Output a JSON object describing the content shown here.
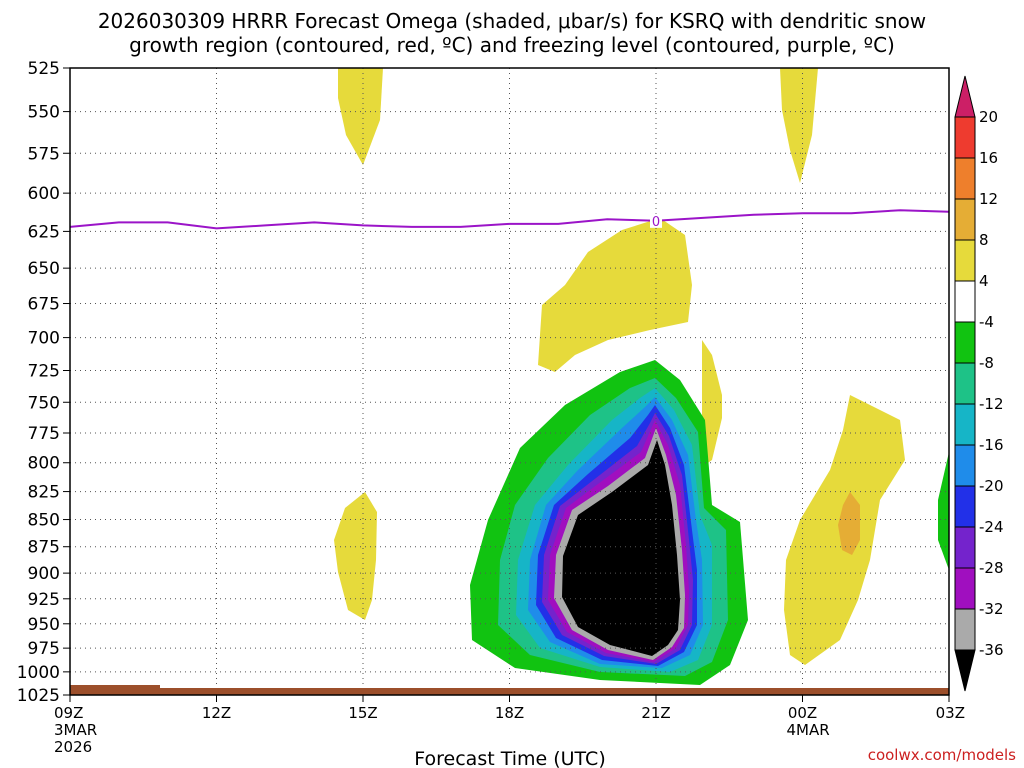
{
  "chart_data": {
    "type": "contour",
    "title_line1": "2026030309 HRRR Forecast Omega (shaded, μbar/s) for KSRQ with dendritic snow",
    "title_line2": "growth region (contoured, red, ºC) and freezing level (contoured, purple, ºC)",
    "xlabel": "Forecast Time (UTC)",
    "watermark": "coolwx.com/models",
    "x_hours": [
      0,
      3,
      6,
      9,
      12,
      15,
      18
    ],
    "x_ticks": [
      {
        "label": "09Z",
        "sub1": "3MAR",
        "sub2": "2026"
      },
      {
        "label": "12Z",
        "sub1": "",
        "sub2": ""
      },
      {
        "label": "15Z",
        "sub1": "",
        "sub2": ""
      },
      {
        "label": "18Z",
        "sub1": "",
        "sub2": ""
      },
      {
        "label": "21Z",
        "sub1": "",
        "sub2": ""
      },
      {
        "label": "00Z",
        "sub1": "4MAR",
        "sub2": ""
      },
      {
        "label": "03Z",
        "sub1": "",
        "sub2": ""
      }
    ],
    "y_ticks": [
      525,
      550,
      575,
      600,
      625,
      650,
      675,
      700,
      725,
      750,
      775,
      800,
      825,
      850,
      875,
      900,
      925,
      950,
      975,
      1000,
      1025
    ],
    "ylim": [
      1025,
      525
    ],
    "y_unit": "hPa",
    "freezing_level": {
      "label": "0",
      "hours": [
        0,
        1,
        2,
        3,
        4,
        5,
        6,
        7,
        8,
        9,
        10,
        11,
        12,
        13,
        14,
        15,
        16,
        17,
        18
      ],
      "pressure": [
        622,
        619,
        619,
        623,
        621,
        619,
        621,
        622,
        622,
        620,
        620,
        617,
        618,
        616,
        614,
        613,
        613,
        611,
        612
      ]
    },
    "colorbar": {
      "levels": [
        "20",
        "16",
        "12",
        "8",
        "4",
        "-4",
        "-8",
        "-12",
        "-16",
        "-20",
        "-24",
        "-28",
        "-32",
        "-36"
      ],
      "colors": [
        "#cc1f66",
        "#ee3b2f",
        "#ee7f2c",
        "#e5ad35",
        "#e6da3b",
        "#ffffff",
        "#11c311",
        "#1ec287",
        "#16b5c7",
        "#1f8cea",
        "#2230e8",
        "#7423cc",
        "#a00fbf",
        "#aaaaaa",
        "#000000"
      ]
    },
    "omega_features": [
      {
        "value": "-36 and below",
        "color": "#000000",
        "center_hour": 11.4,
        "pressure_range": [
          765,
          1000
        ]
      },
      {
        "value": "+4 to +8",
        "color": "#e6da3b",
        "center_hour": 10.9,
        "pressure_range": [
          618,
          740
        ]
      },
      {
        "value": "+4 to +8",
        "color": "#e6da3b",
        "center_hour": 15.8,
        "pressure_range": [
          740,
          995
        ]
      },
      {
        "value": "+8 to +12",
        "color": "#e5ad35",
        "center_hour": 15.9,
        "pressure_range": [
          845,
          880
        ]
      }
    ]
  }
}
